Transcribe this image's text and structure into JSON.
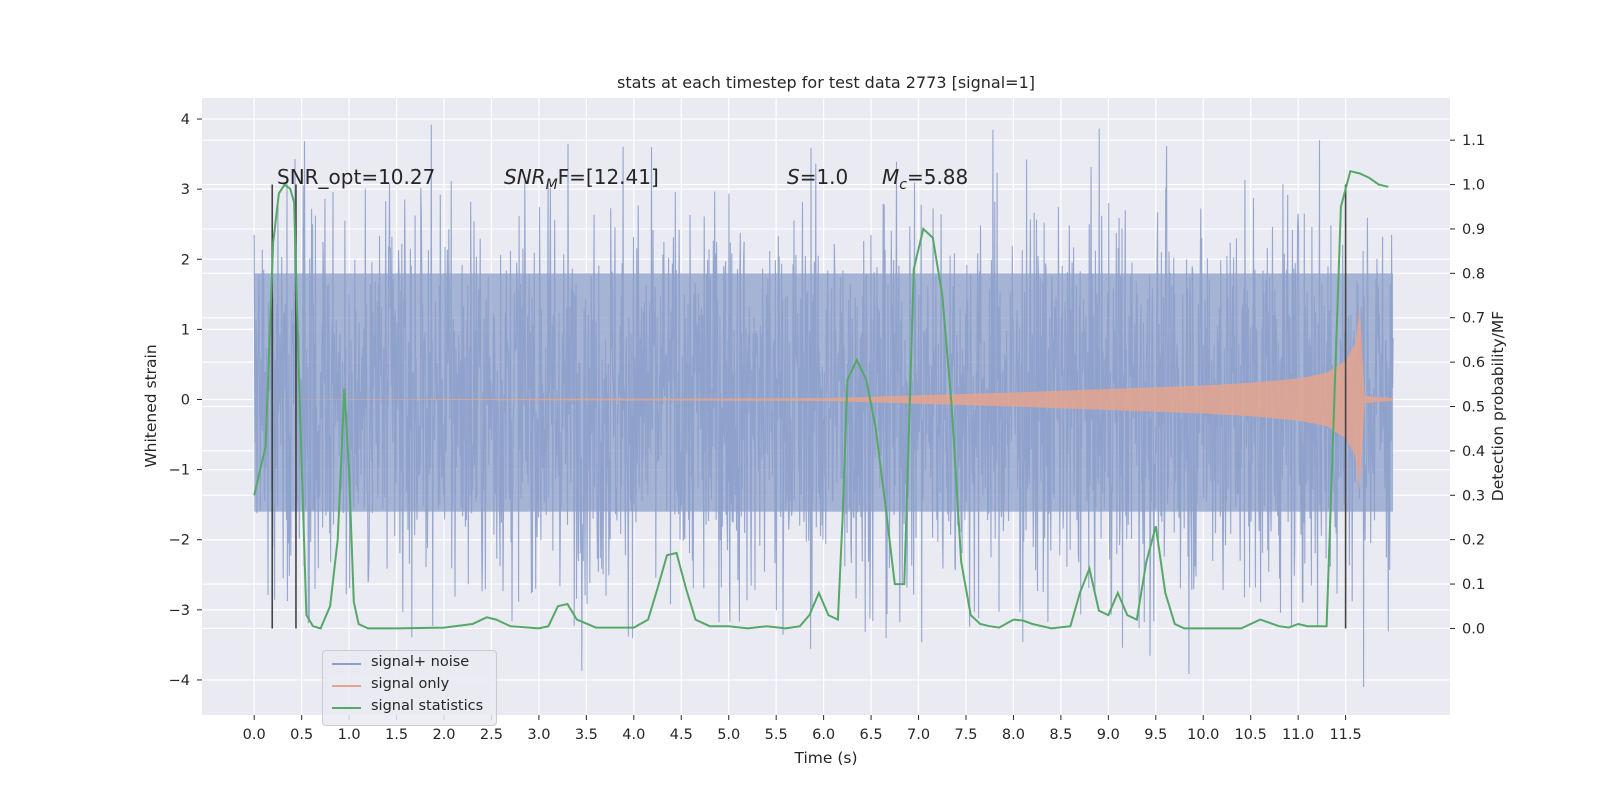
{
  "chart_data": {
    "type": "line",
    "title": "stats at each timestep for test data 2773 [signal=1]",
    "xlabel": "Time (s)",
    "ylabel_left": "Whitened strain",
    "ylabel_right": "Detection probability/MF",
    "xlim": [
      -0.55,
      12.6
    ],
    "ylim_left": [
      -4.5,
      4.3
    ],
    "ylim_right": [
      -0.195,
      1.195
    ],
    "x_ticks": [
      "0.0",
      "0.5",
      "1.0",
      "1.5",
      "2.0",
      "2.5",
      "3.0",
      "3.5",
      "4.0",
      "4.5",
      "5.0",
      "5.5",
      "6.0",
      "6.5",
      "7.0",
      "7.5",
      "8.0",
      "8.5",
      "9.0",
      "9.5",
      "10.0",
      "10.5",
      "11.0",
      "11.5"
    ],
    "y_ticks_left": [
      "4",
      "3",
      "2",
      "1",
      "0",
      "−1",
      "−2",
      "−3",
      "−4"
    ],
    "y_ticks_right": [
      "1.1",
      "1.0",
      "0.9",
      "0.8",
      "0.7",
      "0.6",
      "0.5",
      "0.4",
      "0.3",
      "0.2",
      "0.1",
      "0.0"
    ],
    "grid": true,
    "legend_position": "lower-left",
    "colors": {
      "background": "#eaeaf2",
      "grid": "#ffffff",
      "signal_noise": "#8da0cb",
      "signal_only": "#e5a58d",
      "signal_statistics": "#55a868",
      "marker_lines": "#444444"
    },
    "annotations": [
      {
        "text": "SNR_opt=10.27"
      },
      {
        "text": "SNR",
        "sub": "M",
        "tail": "F=[12.41]",
        "italic": true
      },
      {
        "text": "S",
        "tail": "=1.0",
        "italic": true
      },
      {
        "text": "M",
        "sub": "c",
        "tail": "=5.88",
        "italic": true
      }
    ],
    "vertical_markers_s": [
      0.19,
      0.44,
      11.5
    ],
    "series": [
      {
        "name": "signal+ noise",
        "description_range": {
          "x_start": 0.0,
          "x_end": 12.0,
          "typical_amplitude": 1.5,
          "max": 3.92,
          "min": -4.1
        }
      },
      {
        "name": "signal only",
        "envelope": {
          "x": [
            0.0,
            6.0,
            7.0,
            8.0,
            9.0,
            10.0,
            10.5,
            11.0,
            11.3,
            11.5,
            11.6,
            11.65,
            11.7
          ],
          "amplitude": [
            0.0,
            0.02,
            0.06,
            0.1,
            0.15,
            0.2,
            0.24,
            0.3,
            0.38,
            0.55,
            0.8,
            1.3,
            0.05
          ]
        }
      },
      {
        "name": "signal statistics",
        "x": [
          0.0,
          0.12,
          0.2,
          0.26,
          0.32,
          0.38,
          0.42,
          0.48,
          0.55,
          0.62,
          0.7,
          0.8,
          0.88,
          0.95,
          1.0,
          1.05,
          1.1,
          1.2,
          1.5,
          2.0,
          2.3,
          2.45,
          2.55,
          2.7,
          3.0,
          3.1,
          3.2,
          3.3,
          3.4,
          3.6,
          4.0,
          4.15,
          4.25,
          4.35,
          4.45,
          4.55,
          4.65,
          4.8,
          5.0,
          5.2,
          5.4,
          5.6,
          5.75,
          5.85,
          5.95,
          6.05,
          6.15,
          6.2,
          6.25,
          6.35,
          6.45,
          6.55,
          6.65,
          6.75,
          6.85,
          6.95,
          7.05,
          7.15,
          7.25,
          7.35,
          7.45,
          7.55,
          7.65,
          7.75,
          7.85,
          8.0,
          8.1,
          8.2,
          8.4,
          8.6,
          8.7,
          8.8,
          8.9,
          9.0,
          9.1,
          9.2,
          9.3,
          9.4,
          9.5,
          9.6,
          9.7,
          9.8,
          10.0,
          10.4,
          10.6,
          10.8,
          10.9,
          11.0,
          11.1,
          11.3,
          11.45,
          11.55,
          11.65,
          11.75,
          11.85,
          11.95
        ],
        "y": [
          0.3,
          0.41,
          0.87,
          0.98,
          1.0,
          0.99,
          0.96,
          0.5,
          0.03,
          0.005,
          0.0,
          0.05,
          0.2,
          0.54,
          0.35,
          0.06,
          0.01,
          0.0,
          0.0,
          0.002,
          0.01,
          0.025,
          0.02,
          0.005,
          0.0,
          0.005,
          0.05,
          0.055,
          0.02,
          0.002,
          0.002,
          0.02,
          0.09,
          0.165,
          0.17,
          0.09,
          0.02,
          0.005,
          0.005,
          0.0,
          0.005,
          0.0,
          0.005,
          0.03,
          0.08,
          0.03,
          0.02,
          0.25,
          0.56,
          0.605,
          0.56,
          0.45,
          0.28,
          0.1,
          0.1,
          0.81,
          0.9,
          0.88,
          0.75,
          0.5,
          0.15,
          0.03,
          0.01,
          0.005,
          0.002,
          0.02,
          0.018,
          0.01,
          0.0,
          0.005,
          0.08,
          0.135,
          0.04,
          0.03,
          0.08,
          0.03,
          0.02,
          0.15,
          0.23,
          0.08,
          0.01,
          0.0,
          0.0,
          0.0,
          0.02,
          0.005,
          0.002,
          0.01,
          0.005,
          0.005,
          0.95,
          1.03,
          1.025,
          1.015,
          1.0,
          0.995
        ]
      }
    ]
  }
}
